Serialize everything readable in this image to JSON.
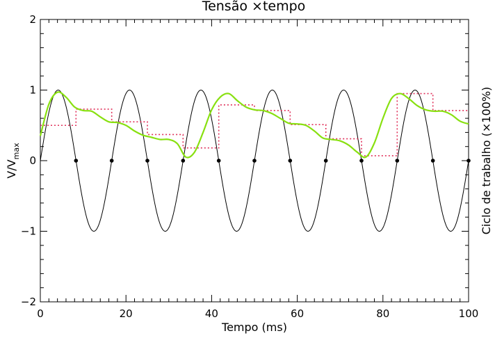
{
  "chart_data": {
    "type": "line",
    "title": "Tensão ×tempo",
    "xlabel": "Tempo (ms)",
    "ylabel_main": "V/V",
    "ylabel_sub": "max",
    "ylabel_right": "Ciclo de trabalho (×100%)",
    "xlim": [
      0,
      100
    ],
    "ylim": [
      -2,
      2
    ],
    "x_ticks": [
      0,
      20,
      40,
      60,
      80,
      100
    ],
    "x_tick_labels": [
      "0",
      "20",
      "40",
      "60",
      "80",
      "100"
    ],
    "y_ticks": [
      -2,
      -1,
      0,
      1,
      2
    ],
    "y_tick_labels": [
      "−2",
      "−1",
      "0",
      "1",
      "2"
    ],
    "grid": false,
    "colors": {
      "sine": "#000000",
      "duty": "#e0305a",
      "filtered": "#88e010",
      "points": "#000000"
    },
    "series": [
      {
        "style": "sine",
        "period_ms": 16.6667,
        "x": [
          0,
          2.083,
          4.167,
          6.25,
          8.333,
          10.417,
          12.5,
          14.583,
          16.667
        ],
        "values": [
          0,
          0.707,
          1,
          0.707,
          0,
          -0.707,
          -1,
          -0.707,
          0
        ]
      },
      {
        "style": "duty-steps",
        "x": [
          0,
          8.33,
          16.67,
          25,
          33.33,
          41.67,
          50,
          58.33,
          66.67,
          75,
          83.33,
          91.67
        ],
        "values": [
          0.5,
          0.73,
          0.55,
          0.37,
          0.18,
          0.79,
          0.71,
          0.51,
          0.31,
          0.07,
          0.95,
          0.71
        ]
      },
      {
        "style": "filtered",
        "x": [
          0,
          2,
          4,
          6,
          8,
          10,
          12,
          14,
          16,
          18,
          20,
          22,
          24,
          26,
          28,
          30,
          32,
          34,
          36,
          38,
          40,
          42,
          44,
          46,
          48,
          50,
          52,
          54,
          56,
          58,
          60,
          62,
          64,
          66,
          68,
          70,
          72,
          74,
          76,
          78,
          80,
          82,
          84,
          86,
          88,
          90,
          92,
          94,
          96,
          98,
          100
        ],
        "values": [
          0.35,
          0.8,
          0.97,
          0.9,
          0.76,
          0.71,
          0.7,
          0.62,
          0.55,
          0.54,
          0.5,
          0.42,
          0.36,
          0.33,
          0.3,
          0.3,
          0.24,
          0.05,
          0.12,
          0.4,
          0.72,
          0.9,
          0.95,
          0.85,
          0.76,
          0.72,
          0.71,
          0.67,
          0.6,
          0.53,
          0.52,
          0.5,
          0.42,
          0.32,
          0.3,
          0.28,
          0.22,
          0.12,
          0.05,
          0.25,
          0.6,
          0.88,
          0.95,
          0.88,
          0.78,
          0.72,
          0.7,
          0.7,
          0.65,
          0.56,
          0.52
        ]
      },
      {
        "style": "zero-crossings",
        "x": [
          8.33,
          16.67,
          25,
          33.33,
          41.67,
          50,
          58.33,
          66.67,
          75,
          83.33,
          91.67,
          100
        ],
        "values": [
          0,
          0,
          0,
          0,
          0,
          0,
          0,
          0,
          0,
          0,
          0,
          0
        ]
      }
    ]
  }
}
